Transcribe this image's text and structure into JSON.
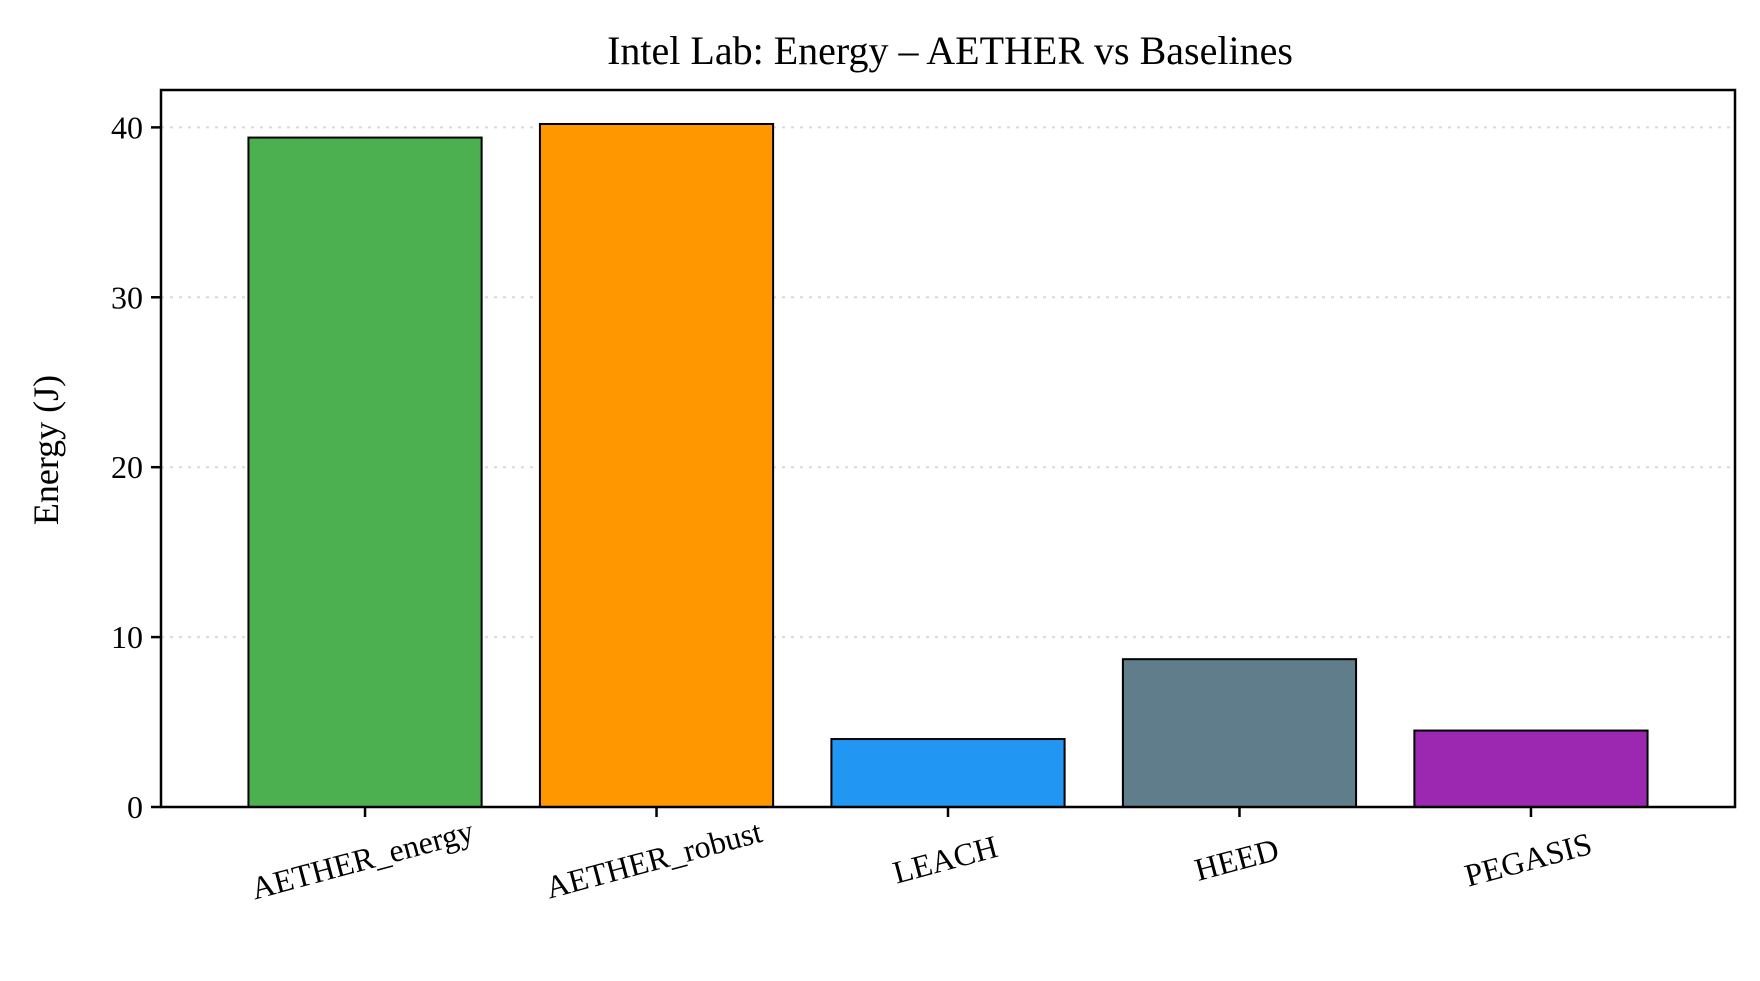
{
  "chart_data": {
    "type": "bar",
    "title": "Intel Lab: Energy – AETHER vs Baselines",
    "xlabel": "",
    "ylabel": "Energy (J)",
    "ylim": [
      0,
      42.2
    ],
    "yticks": [
      0,
      10,
      20,
      30,
      40
    ],
    "grid": "y-axis dotted",
    "categories": [
      "AETHER_energy",
      "AETHER_robust",
      "LEACH",
      "HEED",
      "PEGASIS"
    ],
    "values": [
      39.4,
      40.2,
      4.0,
      8.7,
      4.5
    ],
    "colors": [
      "#4caf50",
      "#ff9800",
      "#2196f3",
      "#607d8b",
      "#9c27b0"
    ]
  }
}
